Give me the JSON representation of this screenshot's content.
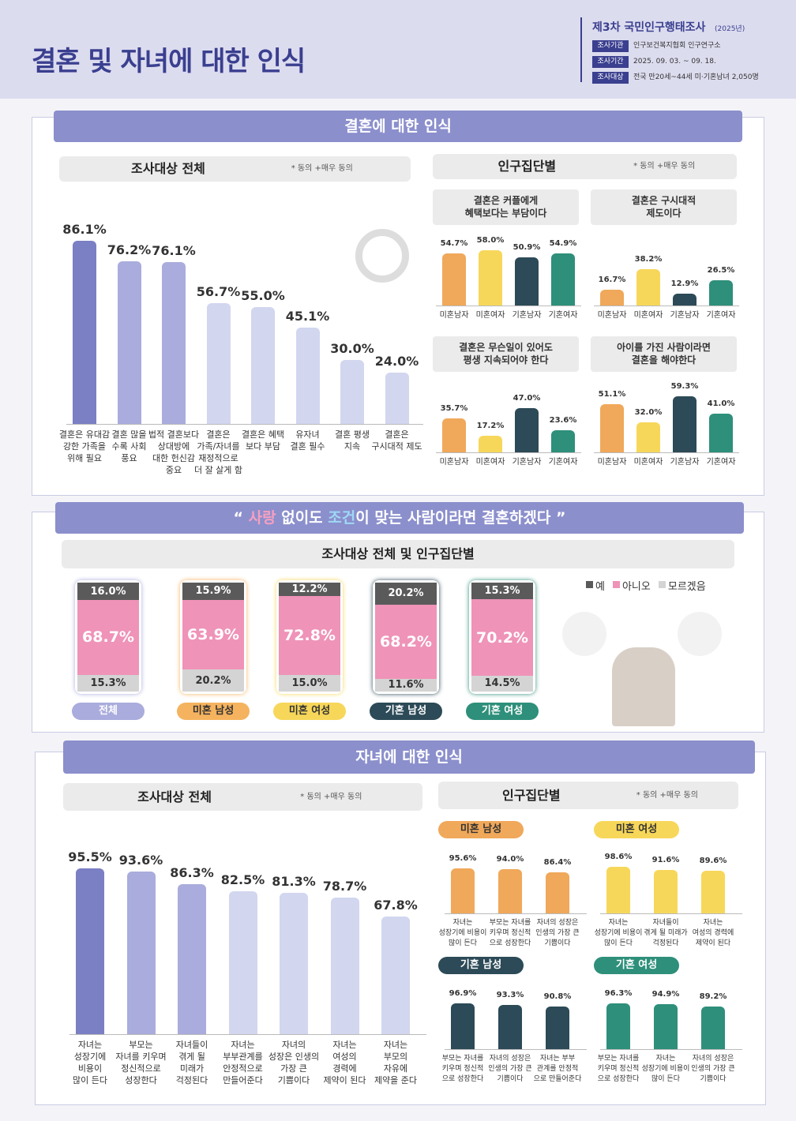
{
  "header": {
    "title": "결혼 및 자녀에 대한 인식",
    "survey": "제3차 국민인구행태조사",
    "year": "(2025년)",
    "rows": [
      {
        "label": "조사기관",
        "value": "인구보건복지협회 인구연구소"
      },
      {
        "label": "조사기간",
        "value": "2025. 09. 03. ~ 09. 18."
      },
      {
        "label": "조사대상",
        "value": "전국 만20세~44세 미·기혼남녀 2,050명"
      }
    ]
  },
  "sections": [
    {
      "title": "결혼에 대한 인식",
      "panels": [
        {
          "title": "조사대상 전체",
          "note": "* 동의 +매우 동의"
        },
        {
          "title": "인구집단별",
          "note": "* 동의 +매우 동의"
        }
      ]
    },
    {
      "title_parts": [
        "“ ",
        "사랑",
        " 없이도 ",
        "조건",
        "이 맞는 사람이라면 결혼하겠다",
        " ”"
      ],
      "panels": [
        {
          "title": "조사대상 전체 및 인구집단별"
        }
      ]
    },
    {
      "title": "자녀에 대한 인식",
      "panels": [
        {
          "title": "조사대상 전체",
          "note": "* 동의 +매우 동의"
        },
        {
          "title": "인구집단별",
          "note": "* 동의 +매우 동의"
        }
      ]
    }
  ],
  "chart_data": [
    {
      "type": "bar",
      "categories": [
        "결혼은 유대감\n강한 가족을\n위해 필요",
        "결혼 많을\n수록 사회\n풍요",
        "법적 결혼보다\n상대방에\n대한 헌신감\n중요",
        "결혼은\n가족/자녀를\n재정적으로\n더 잘 살게 함",
        "결혼은 혜택\n보다 부담",
        "유자녀\n결혼 필수",
        "결혼 평생\n지속",
        "결혼은\n구시대적 제도"
      ],
      "values": [
        86.1,
        76.2,
        76.1,
        56.7,
        55.0,
        45.1,
        30.0,
        24.0
      ],
      "value_labels": [
        "86.1%",
        "76.2%",
        "76.1%",
        "56.7%",
        "55.0%",
        "45.1%",
        "30.0%",
        "24.0%"
      ],
      "colors": [
        "#7b7fc4",
        "#a9acdc",
        "#a9acdc",
        "#d2d6ef",
        "#d2d6ef",
        "#d2d6ef",
        "#d2d6ef",
        "#d2d6ef"
      ]
    },
    {
      "type": "bar",
      "title": "결혼은 커플에게\n혜택보다는 부담이다",
      "categories": [
        "미혼남자",
        "미혼여자",
        "기혼남자",
        "기혼여자"
      ],
      "values": [
        54.7,
        58.0,
        50.9,
        54.9
      ],
      "value_labels": [
        "54.7%",
        "58.0%",
        "50.9%",
        "54.9%"
      ],
      "colors": [
        "#f0a85a",
        "#f7d75a",
        "#2c4a57",
        "#2e8f7a"
      ]
    },
    {
      "type": "bar",
      "title": "결혼은 구시대적\n제도이다",
      "categories": [
        "미혼남자",
        "미혼여자",
        "기혼남자",
        "기혼여자"
      ],
      "values": [
        16.7,
        38.2,
        12.9,
        26.5
      ],
      "value_labels": [
        "16.7%",
        "38.2%",
        "12.9%",
        "26.5%"
      ],
      "colors": [
        "#f0a85a",
        "#f7d75a",
        "#2c4a57",
        "#2e8f7a"
      ]
    },
    {
      "type": "bar",
      "title": "결혼은 무슨일이 있어도\n평생 지속되어야 한다",
      "categories": [
        "미혼남자",
        "미혼여자",
        "기혼남자",
        "기혼여자"
      ],
      "values": [
        35.7,
        17.2,
        47.0,
        23.6
      ],
      "value_labels": [
        "35.7%",
        "17.2%",
        "47.0%",
        "23.6%"
      ],
      "colors": [
        "#f0a85a",
        "#f7d75a",
        "#2c4a57",
        "#2e8f7a"
      ]
    },
    {
      "type": "bar",
      "title": "아이를 가진 사람이라면\n결혼을 해야한다",
      "categories": [
        "미혼남자",
        "미혼여자",
        "기혼남자",
        "기혼여자"
      ],
      "values": [
        51.1,
        32.0,
        59.3,
        41.0
      ],
      "value_labels": [
        "51.1%",
        "32.0%",
        "59.3%",
        "41.0%"
      ],
      "colors": [
        "#f0a85a",
        "#f7d75a",
        "#2c4a57",
        "#2e8f7a"
      ]
    },
    {
      "type": "stacked_bar",
      "categories": [
        "전체",
        "미혼 남성",
        "미혼 여성",
        "기혼 남성",
        "기혼 여성"
      ],
      "category_colors": [
        "#a9acdc",
        "#f5b35f",
        "#f7d75a",
        "#2c4a57",
        "#2e8f7a"
      ],
      "series": [
        {
          "name": "예",
          "color": "#5a5a5a",
          "values": [
            16.0,
            15.9,
            12.2,
            20.2,
            15.3
          ],
          "value_labels": [
            "16.0%",
            "15.9%",
            "12.2%",
            "20.2%",
            "15.3%"
          ]
        },
        {
          "name": "아니오",
          "color": "#ef93b8",
          "values": [
            68.7,
            63.9,
            72.8,
            68.2,
            70.2
          ],
          "value_labels": [
            "68.7%",
            "63.9%",
            "72.8%",
            "68.2%",
            "70.2%"
          ]
        },
        {
          "name": "모르겠음",
          "color": "#d4d4d4",
          "values": [
            15.3,
            20.2,
            15.0,
            11.6,
            14.5
          ],
          "value_labels": [
            "15.3%",
            "20.2%",
            "15.0%",
            "11.6%",
            "14.5%"
          ]
        }
      ]
    },
    {
      "type": "bar",
      "categories": [
        "자녀는\n성장기에\n비용이\n많이 든다",
        "부모는\n자녀를 키우며\n정신적으로\n성장한다",
        "자녀들이\n겪게 될\n미래가\n걱정된다",
        "자녀는\n부부관계를\n안정적으로\n만들어준다",
        "자녀의\n성장은 인생의\n가장 큰\n기쁨이다",
        "자녀는\n여성의\n경력에\n제약이 된다",
        "자녀는\n부모의\n자유에\n제약을 준다"
      ],
      "values": [
        95.5,
        93.6,
        86.3,
        82.5,
        81.3,
        78.7,
        67.8
      ],
      "value_labels": [
        "95.5%",
        "93.6%",
        "86.3%",
        "82.5%",
        "81.3%",
        "78.7%",
        "67.8%"
      ],
      "colors": [
        "#7b7fc4",
        "#a9acdc",
        "#a9acdc",
        "#d2d6ef",
        "#d2d6ef",
        "#d2d6ef",
        "#d2d6ef"
      ]
    },
    {
      "type": "bar",
      "group": "미혼 남성",
      "categories": [
        "자녀는\n성장기에 비용이\n많이 든다",
        "부모는 자녀를\n키우며 정신적\n으로 성장한다",
        "자녀의 성장은\n인생의 가장 큰\n기쁨이다"
      ],
      "values": [
        95.6,
        94.0,
        86.4
      ],
      "value_labels": [
        "95.6%",
        "94.0%",
        "86.4%"
      ],
      "color": "#f0a85a"
    },
    {
      "type": "bar",
      "group": "미혼 여성",
      "categories": [
        "자녀는\n성장기에 비용이\n많이 든다",
        "자녀들이\n겪게 될 미래가\n걱정된다",
        "자녀는\n여성의 경력에\n제약이 된다"
      ],
      "values": [
        98.6,
        91.6,
        89.6
      ],
      "value_labels": [
        "98.6%",
        "91.6%",
        "89.6%"
      ],
      "color": "#f7d75a"
    },
    {
      "type": "bar",
      "group": "기혼 남성",
      "categories": [
        "부모는 자녀를\n키우며 정신적\n으로 성장한다",
        "자녀의 성장은\n인생의 가장 큰\n기쁨이다",
        "자녀는 부부\n관계를 안정적\n으로 만들어준다"
      ],
      "values": [
        96.9,
        93.3,
        90.8
      ],
      "value_labels": [
        "96.9%",
        "93.3%",
        "90.8%"
      ],
      "color": "#2c4a57"
    },
    {
      "type": "bar",
      "group": "기혼 여성",
      "categories": [
        "부모는 자녀를\n키우며 정신적\n으로 성장한다",
        "자녀는\n성장기에 비용이\n많이 든다",
        "자녀의 성장은\n인생의 가장 큰\n기쁨이다"
      ],
      "values": [
        96.3,
        94.9,
        89.2
      ],
      "value_labels": [
        "96.3%",
        "94.9%",
        "89.2%"
      ],
      "color": "#2e8f7a"
    }
  ]
}
